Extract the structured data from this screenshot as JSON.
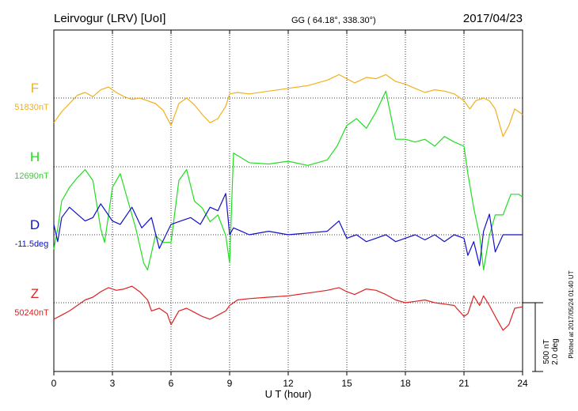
{
  "header": {
    "station": "Leirvogur (LRV)  [UoI]",
    "coords": "GG ( 64.18°, 338.30°)",
    "date": "2017/04/23"
  },
  "plotted_at": "Plotted at 2017/05/24 01:40 UT",
  "scale_bar": {
    "line1": "500 nT",
    "line2": "2.0 deg"
  },
  "colors": {
    "F": "#f0b020",
    "H": "#22dd22",
    "D": "#1010cc",
    "Z": "#dd2222"
  },
  "chart_data": {
    "type": "line",
    "xlabel": "U T (hour)",
    "xlim": [
      0,
      24
    ],
    "x_ticks": [
      0,
      3,
      6,
      9,
      12,
      15,
      18,
      21,
      24
    ],
    "x_tick_labels": [
      "0",
      "3",
      "6",
      "9",
      "12",
      "15",
      "18",
      "21",
      "24"
    ],
    "scale_nT_per_bar": 500,
    "scale_deg_per_bar": 2.0,
    "series": [
      {
        "name": "F",
        "baseline_label": "51830nT",
        "baseline_nT": 51830,
        "x": [
          0,
          0.4,
          0.8,
          1.2,
          1.6,
          2.0,
          2.4,
          2.8,
          3.2,
          3.6,
          4.0,
          4.4,
          4.8,
          5.2,
          5.6,
          6.0,
          6.4,
          6.8,
          7.2,
          7.6,
          8.0,
          8.4,
          8.8,
          9.0,
          9.4,
          10,
          11,
          12,
          13,
          14,
          14.6,
          15,
          15.4,
          16,
          16.5,
          17,
          17.5,
          18,
          18.5,
          19,
          19.5,
          20,
          20.5,
          21,
          21.3,
          21.6,
          22,
          22.3,
          22.6,
          23,
          23.3,
          23.6,
          24
        ],
        "y": [
          -180,
          -100,
          -40,
          20,
          40,
          10,
          60,
          80,
          40,
          10,
          -10,
          0,
          -20,
          -40,
          -90,
          -200,
          -40,
          0,
          -50,
          -120,
          -180,
          -150,
          -60,
          30,
          40,
          30,
          50,
          70,
          90,
          130,
          170,
          140,
          110,
          150,
          140,
          170,
          120,
          100,
          70,
          40,
          60,
          50,
          30,
          -20,
          -80,
          -20,
          0,
          -20,
          -80,
          -280,
          -200,
          -80,
          -120
        ]
      },
      {
        "name": "H",
        "baseline_label": "12690nT",
        "baseline_nT": 12690,
        "x": [
          0,
          0.2,
          0.4,
          0.8,
          1.2,
          1.6,
          2.0,
          2.4,
          2.6,
          3.0,
          3.4,
          3.8,
          4.2,
          4.6,
          4.8,
          5.2,
          5.6,
          6.0,
          6.4,
          6.8,
          7.2,
          7.6,
          8.0,
          8.4,
          8.8,
          9.0,
          9.2,
          10,
          11,
          12,
          13,
          14,
          14.5,
          15,
          15.5,
          16,
          16.5,
          17,
          17.5,
          18,
          18.5,
          19,
          19.5,
          20,
          20.5,
          21,
          21.2,
          21.5,
          21.8,
          22,
          22.3,
          22.6,
          23,
          23.4,
          23.8,
          24
        ],
        "y": [
          -600,
          -450,
          -250,
          -150,
          -80,
          -20,
          -100,
          -450,
          -550,
          -150,
          -50,
          -250,
          -450,
          -700,
          -750,
          -500,
          -550,
          -550,
          -100,
          -20,
          -250,
          -300,
          -400,
          -350,
          -500,
          -700,
          100,
          30,
          20,
          40,
          10,
          50,
          150,
          300,
          350,
          280,
          400,
          550,
          200,
          200,
          180,
          200,
          150,
          220,
          180,
          150,
          -50,
          -300,
          -500,
          -750,
          -500,
          -350,
          -350,
          -200,
          -200,
          -220
        ]
      },
      {
        "name": "D",
        "baseline_label": "-11.5deg",
        "baseline_deg": -11.5,
        "x": [
          0,
          0.2,
          0.4,
          0.8,
          1.2,
          1.6,
          2.0,
          2.4,
          3.0,
          3.4,
          4.0,
          4.5,
          5.0,
          5.4,
          6.0,
          6.5,
          7.0,
          7.5,
          8.0,
          8.4,
          8.8,
          9.0,
          9.2,
          9.6,
          10,
          11,
          12,
          13,
          14,
          14.6,
          15,
          15.5,
          16,
          16.5,
          17,
          17.5,
          18,
          18.5,
          19,
          19.5,
          20,
          20.5,
          21,
          21.2,
          21.5,
          21.8,
          22,
          22.3,
          22.6,
          23,
          23.5,
          24
        ],
        "y": [
          0.3,
          -0.2,
          0.5,
          0.8,
          0.6,
          0.4,
          0.5,
          0.9,
          0.4,
          0.3,
          0.8,
          0.2,
          0.5,
          -0.4,
          0.3,
          0.4,
          0.5,
          0.3,
          0.8,
          0.7,
          1.2,
          0.0,
          0.2,
          0.1,
          0.0,
          0.1,
          0.0,
          0.05,
          0.1,
          0.4,
          -0.1,
          0.0,
          -0.2,
          -0.1,
          0.0,
          -0.2,
          -0.1,
          0.0,
          -0.15,
          0.0,
          -0.2,
          0.0,
          -0.1,
          -0.6,
          -0.2,
          -0.9,
          0.1,
          0.6,
          -0.5,
          0.0,
          0.0,
          0.0
        ]
      },
      {
        "name": "Z",
        "baseline_label": "50240nT",
        "baseline_nT": 50240,
        "x": [
          0,
          0.4,
          0.8,
          1.2,
          1.6,
          2.0,
          2.4,
          2.8,
          3.2,
          3.6,
          4.0,
          4.4,
          4.8,
          5.0,
          5.4,
          5.8,
          6.0,
          6.4,
          6.8,
          7.2,
          7.6,
          8.0,
          8.4,
          8.8,
          9.0,
          9.4,
          10,
          11,
          12,
          13,
          14,
          14.6,
          15,
          15.4,
          16,
          16.5,
          17,
          17.5,
          18,
          18.5,
          19,
          19.5,
          20,
          20.5,
          21,
          21.2,
          21.5,
          21.8,
          22,
          22.3,
          22.6,
          23,
          23.3,
          23.6,
          24
        ],
        "y": [
          -120,
          -90,
          -60,
          -20,
          20,
          40,
          80,
          110,
          90,
          100,
          120,
          80,
          20,
          -60,
          -40,
          -80,
          -160,
          -60,
          -40,
          -70,
          -100,
          -120,
          -90,
          -60,
          -20,
          20,
          30,
          40,
          50,
          70,
          90,
          110,
          80,
          60,
          100,
          90,
          60,
          20,
          0,
          10,
          20,
          0,
          -10,
          -20,
          -100,
          -80,
          50,
          -20,
          50,
          -20,
          -100,
          -200,
          -160,
          -40,
          -30
        ]
      }
    ]
  }
}
